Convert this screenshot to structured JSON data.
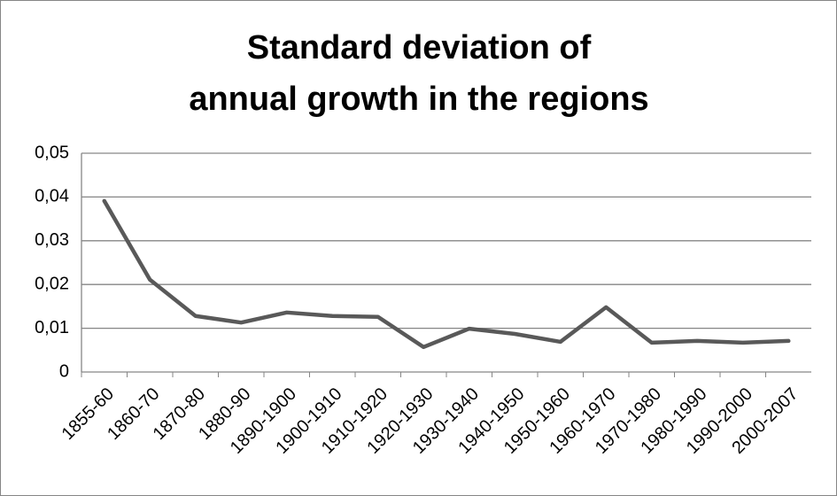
{
  "chart_data": {
    "type": "line",
    "title": [
      "Standard deviation of",
      "annual growth in the regions"
    ],
    "categories": [
      "1855-60",
      "1860-70",
      "1870-80",
      "1880-90",
      "1890-1900",
      "1900-1910",
      "1910-1920",
      "1920-1930",
      "1930-1940",
      "1940-1950",
      "1950-1960",
      "1960-1970",
      "1970-1980",
      "1980-1990",
      "1990-2000",
      "2000-2007"
    ],
    "values": [
      0.0391,
      0.0211,
      0.0128,
      0.0113,
      0.0136,
      0.0128,
      0.0126,
      0.0057,
      0.0099,
      0.0087,
      0.0069,
      0.0148,
      0.0067,
      0.0071,
      0.0067,
      0.0071
    ],
    "color": "#595959",
    "ylim": [
      0,
      0.05
    ],
    "yticks": [
      0,
      {
        "value": 0.01,
        "label": "0,01"
      },
      {
        "value": 0.02,
        "label": "0,02"
      },
      {
        "value": 0.03,
        "label": "0,03"
      },
      {
        "value": 0.04,
        "label": "0,04"
      },
      {
        "value": 0.05,
        "label": "0,05"
      }
    ],
    "grid": true
  }
}
